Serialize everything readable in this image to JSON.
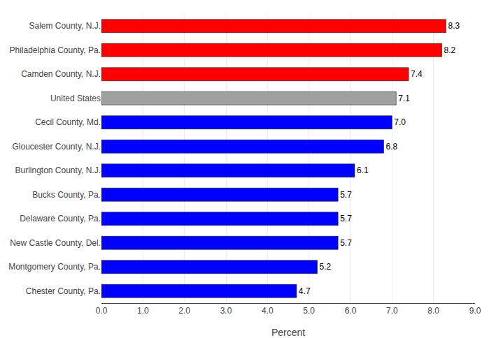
{
  "chart_data": {
    "type": "bar",
    "orientation": "horizontal",
    "categories": [
      "Chester County, Pa.",
      "Montgomery County, Pa.",
      "New Castle County, Del.",
      "Delaware County, Pa.",
      "Bucks County, Pa.",
      "Burlington County, N.J.",
      "Gloucester County, N.J.",
      "Cecil County, Md.",
      "United States",
      "Camden County, N.J.",
      "Philadelphia County, Pa.",
      "Salem County, N.J."
    ],
    "values": [
      4.7,
      5.2,
      5.7,
      5.7,
      5.7,
      6.1,
      6.8,
      7.0,
      7.1,
      7.4,
      8.2,
      8.3
    ],
    "value_labels": [
      "4.7",
      "5.2",
      "5.7",
      "5.7",
      "5.7",
      "6.1",
      "6.8",
      "7.0",
      "7.1",
      "7.4",
      "8.2",
      "8.3"
    ],
    "colors": [
      "#0000ff",
      "#0000ff",
      "#0000ff",
      "#0000ff",
      "#0000ff",
      "#0000ff",
      "#0000ff",
      "#0000ff",
      "#a0a0a0",
      "#ff0000",
      "#ff0000",
      "#ff0000"
    ],
    "data_labels": true,
    "xlabel": "Percent",
    "xlim": [
      0,
      9.0
    ],
    "xticks": [
      {
        "value": 0,
        "label": "0.0"
      },
      {
        "value": 1,
        "label": "1.0"
      },
      {
        "value": 2,
        "label": "2.0"
      },
      {
        "value": 3,
        "label": "3.0"
      },
      {
        "value": 4,
        "label": "4.0"
      },
      {
        "value": 5,
        "label": "5.0"
      },
      {
        "value": 6,
        "label": "6.0"
      },
      {
        "value": 7,
        "label": "7.0"
      },
      {
        "value": 8,
        "label": "8.0"
      },
      {
        "value": 9,
        "label": "9.0"
      }
    ],
    "grid": true
  }
}
